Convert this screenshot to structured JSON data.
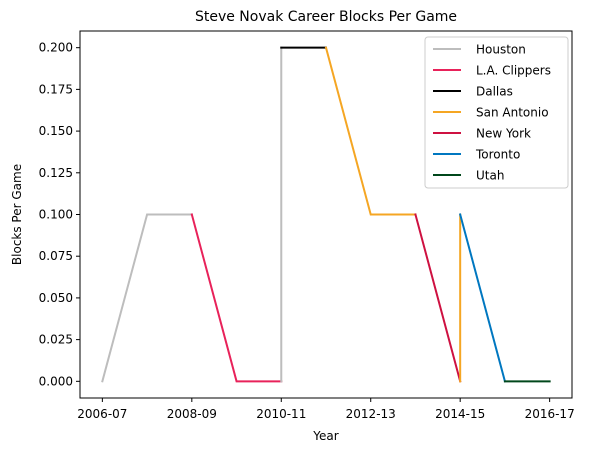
{
  "chart_data": {
    "type": "line",
    "title": "Steve Novak Career Blocks Per Game",
    "xlabel": "Year",
    "ylabel": "Blocks Per Game",
    "x_tick_labels": [
      "2006-07",
      "2008-09",
      "2010-11",
      "2012-13",
      "2014-15",
      "2016-17"
    ],
    "y_tick_labels": [
      "0.000",
      "0.025",
      "0.050",
      "0.075",
      "0.100",
      "0.125",
      "0.150",
      "0.175",
      "0.200"
    ],
    "xlim": [
      "2006-07",
      "2016-17"
    ],
    "ylim": [
      0,
      0.2
    ],
    "grid": false,
    "legend_position": "top-right",
    "series": [
      {
        "name": "Houston",
        "color": "#BDBDBD",
        "points": [
          [
            "2006-07",
            0.0
          ],
          [
            "2007-08",
            0.1
          ],
          [
            "2008-09",
            0.1
          ]
        ]
      },
      {
        "name": "L.A. Clippers",
        "color": "#E8225A",
        "points": [
          [
            "2008-09",
            0.1
          ],
          [
            "2009-10",
            0.0
          ],
          [
            "2010-11",
            0.0
          ]
        ]
      },
      {
        "name": "Houston",
        "color": "#BDBDBD",
        "points": [
          [
            "2010-11",
            0.0
          ],
          [
            "2010-11",
            0.2
          ]
        ]
      },
      {
        "name": "Dallas",
        "color": "#000000",
        "points": [
          [
            "2010-11",
            0.2
          ],
          [
            "2011-12",
            0.2
          ]
        ]
      },
      {
        "name": "San Antonio",
        "color": "#F5A623",
        "points": [
          [
            "2011-12",
            0.2
          ],
          [
            "2012-13",
            0.1
          ],
          [
            "2013-14",
            0.1
          ]
        ]
      },
      {
        "name": "New York",
        "color": "#CE1141",
        "points": [
          [
            "2013-14",
            0.1
          ],
          [
            "2014-15",
            0.0
          ]
        ]
      },
      {
        "name": "San Antonio",
        "color": "#F5A623",
        "points": [
          [
            "2014-15",
            0.0
          ],
          [
            "2014-15",
            0.1
          ]
        ]
      },
      {
        "name": "Toronto",
        "color": "#0077C0",
        "points": [
          [
            "2014-15",
            0.1
          ],
          [
            "2015-16",
            0.0
          ]
        ]
      },
      {
        "name": "Utah",
        "color": "#00471B",
        "points": [
          [
            "2015-16",
            0.0
          ],
          [
            "2016-17",
            0.0
          ]
        ]
      }
    ],
    "legend": [
      {
        "label": "Houston",
        "color": "#BDBDBD"
      },
      {
        "label": "L.A. Clippers",
        "color": "#E8225A"
      },
      {
        "label": "Dallas",
        "color": "#000000"
      },
      {
        "label": "San Antonio",
        "color": "#F5A623"
      },
      {
        "label": "New York",
        "color": "#CE1141"
      },
      {
        "label": "Toronto",
        "color": "#0077C0"
      },
      {
        "label": "Utah",
        "color": "#00471B"
      }
    ]
  }
}
